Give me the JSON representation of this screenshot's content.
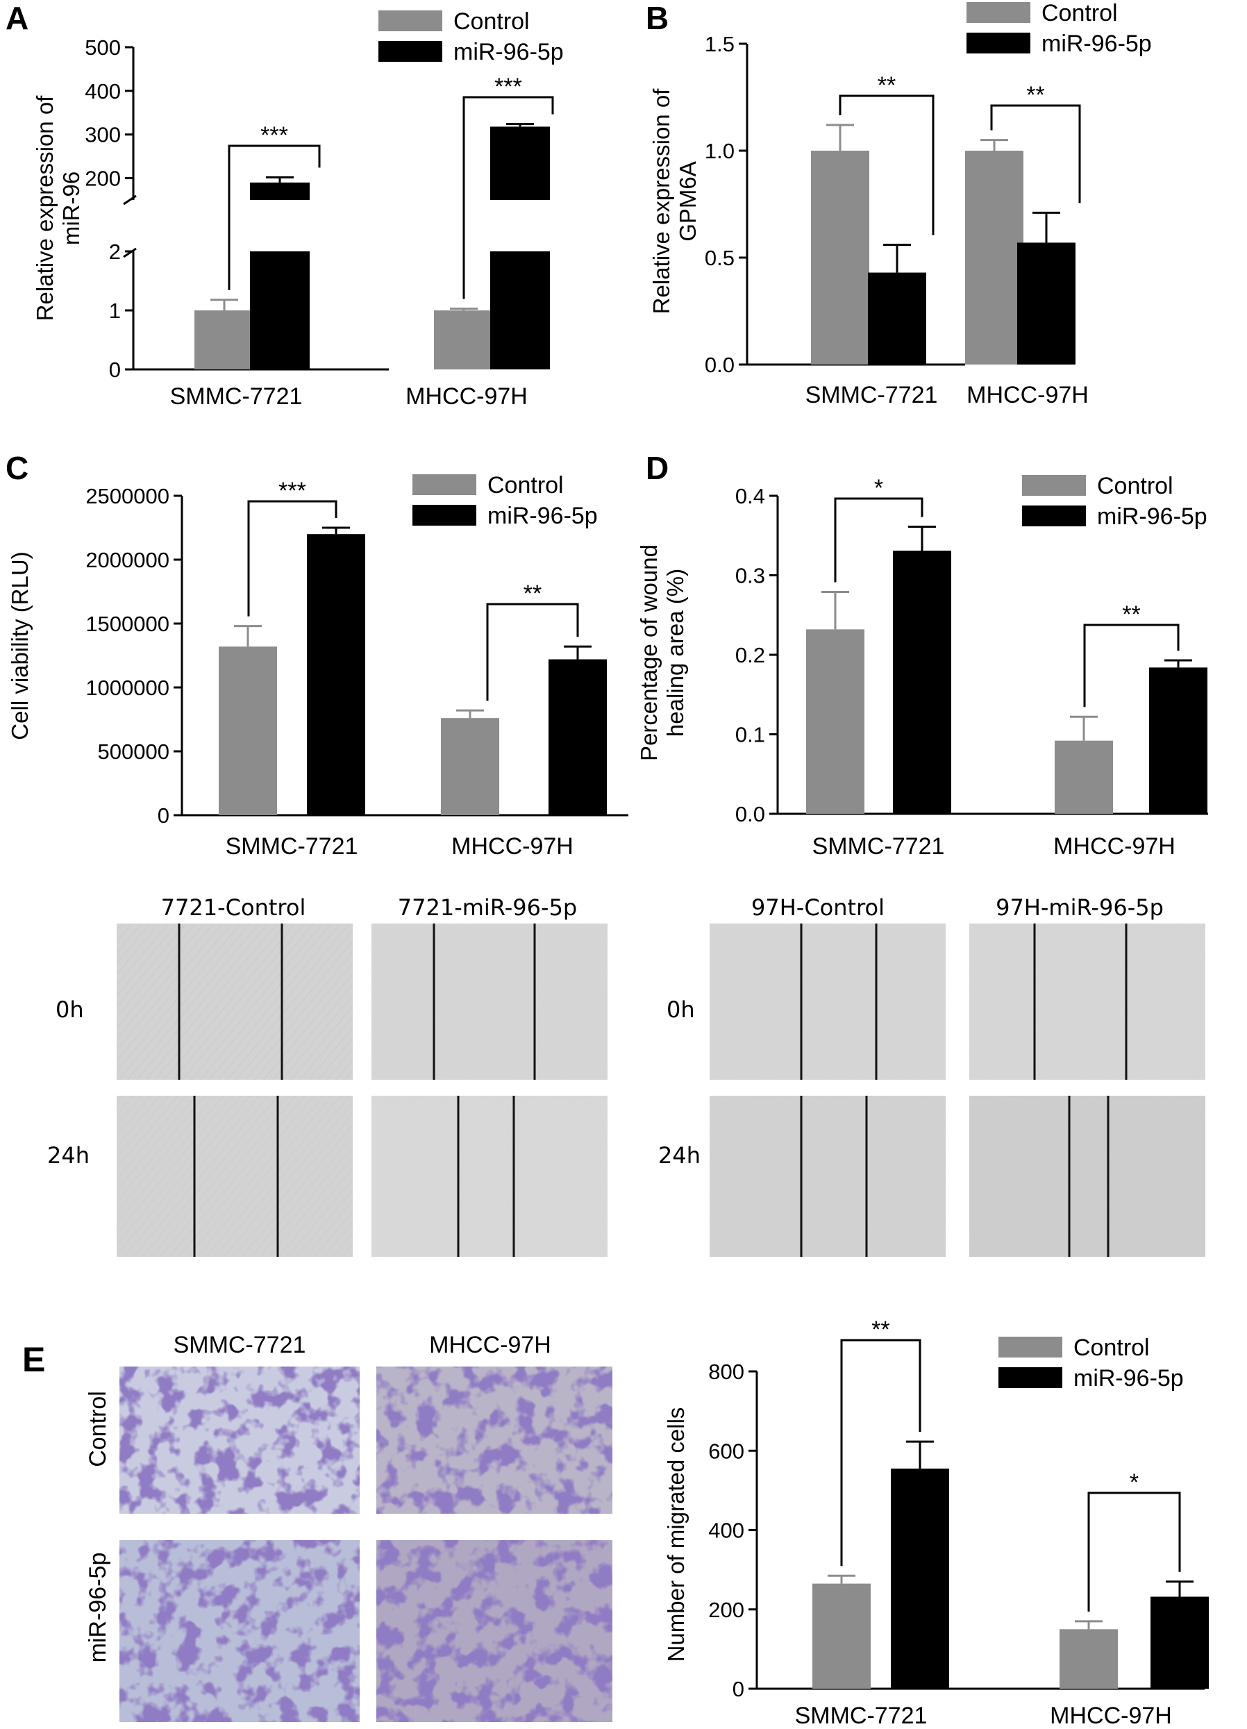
{
  "colors": {
    "control": "#8c8c8c",
    "treatment": "#000000"
  },
  "panel_labels": {
    "A": "A",
    "B": "B",
    "C": "C",
    "D": "D",
    "E": "E"
  },
  "legend": {
    "control": "Control",
    "treatment": "miR-96-5p"
  },
  "chart_data": [
    {
      "panel": "A",
      "type": "bar",
      "categories": [
        "SMMC-7721",
        "MHCC-97H"
      ],
      "series": [
        {
          "name": "Control",
          "values": [
            1.0,
            1.0
          ],
          "errors": [
            0.18,
            0.03
          ]
        },
        {
          "name": "miR-96-5p",
          "values": [
            190,
            318
          ],
          "errors": [
            12,
            6
          ]
        }
      ],
      "ylabel": "Relative  expression of miR-96",
      "yaxis_broken": true,
      "ylim_lower": [
        0,
        2
      ],
      "ylim_upper": [
        150,
        500
      ],
      "yticks": [
        "0",
        "1",
        "2",
        "200",
        "300",
        "400",
        "500"
      ],
      "significance": [
        "***",
        "***"
      ]
    },
    {
      "panel": "B",
      "type": "bar",
      "categories": [
        "SMMC-7721",
        "MHCC-97H"
      ],
      "series": [
        {
          "name": "Control",
          "values": [
            1.0,
            1.0
          ],
          "errors": [
            0.12,
            0.05
          ]
        },
        {
          "name": "miR-96-5p",
          "values": [
            0.43,
            0.57
          ],
          "errors": [
            0.13,
            0.14
          ]
        }
      ],
      "ylabel": "Relative  expression of GPM6A",
      "ylim": [
        0,
        1.5
      ],
      "yticks": [
        "0.0",
        "0.5",
        "1.0",
        "1.5"
      ],
      "significance": [
        "**",
        "**"
      ]
    },
    {
      "panel": "C",
      "type": "bar",
      "categories": [
        "SMMC-7721",
        "MHCC-97H"
      ],
      "series": [
        {
          "name": "Control",
          "values": [
            1320000,
            760000
          ],
          "errors": [
            160000,
            60000
          ]
        },
        {
          "name": "miR-96-5p",
          "values": [
            2200000,
            1220000
          ],
          "errors": [
            50000,
            100000
          ]
        }
      ],
      "ylabel": "Cell viability (RLU)",
      "ylim": [
        0,
        2500000
      ],
      "yticks": [
        "0",
        "500000",
        "1000000",
        "1500000",
        "2000000",
        "2500000"
      ],
      "significance": [
        "***",
        "**"
      ]
    },
    {
      "panel": "D",
      "type": "bar",
      "categories": [
        "SMMC-7721",
        "MHCC-97H"
      ],
      "series": [
        {
          "name": "Control",
          "values": [
            0.232,
            0.092
          ],
          "errors": [
            0.047,
            0.03
          ]
        },
        {
          "name": "miR-96-5p",
          "values": [
            0.331,
            0.184
          ],
          "errors": [
            0.03,
            0.009
          ]
        }
      ],
      "ylabel": "Percentage of wound healing area (%)",
      "ylim": [
        0,
        0.4
      ],
      "yticks": [
        "0.0",
        "0.1",
        "0.2",
        "0.3",
        "0.4"
      ],
      "significance": [
        "*",
        "**"
      ]
    },
    {
      "panel": "E",
      "type": "bar",
      "categories": [
        "SMMC-7721",
        "MHCC-97H"
      ],
      "series": [
        {
          "name": "Control",
          "values": [
            265,
            150
          ],
          "errors": [
            20,
            20
          ]
        },
        {
          "name": "miR-96-5p",
          "values": [
            555,
            232
          ],
          "errors": [
            68,
            38
          ]
        }
      ],
      "ylabel": "Number of migrated cells",
      "ylim": [
        0,
        800
      ],
      "yticks": [
        "0",
        "200",
        "400",
        "600",
        "800"
      ],
      "significance": [
        "**",
        "*"
      ]
    }
  ],
  "wound_images": {
    "col_titles": [
      "7721-Control",
      "7721-miR-96-5p",
      "97H-Control",
      "97H-miR-96-5p"
    ],
    "row_labels": [
      "0h",
      "24h"
    ]
  },
  "transwell_images": {
    "col_titles": [
      "SMMC-7721",
      "MHCC-97H"
    ],
    "row_labels": [
      "Control",
      "miR-96-5p"
    ]
  }
}
